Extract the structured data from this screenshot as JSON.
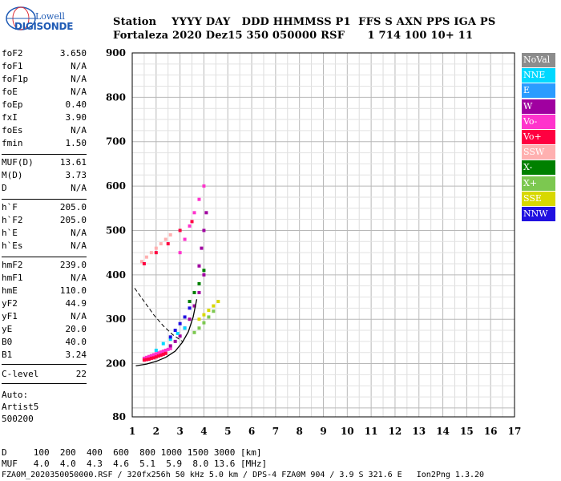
{
  "logo": {
    "line1": "Lowell",
    "line2": "DIGISONDE"
  },
  "header": {
    "labels": "Station    YYYY DAY   DDD HHMMSS P1  FFS S AXN PPS IGA PS",
    "values": "Fortaleza 2020 Dez15 350 050000 RSF      1 714 100 10+ 11"
  },
  "params_group1": [
    {
      "key": "foF2",
      "value": "3.650"
    },
    {
      "key": "foF1",
      "value": "N/A"
    },
    {
      "key": "foF1p",
      "value": "N/A"
    },
    {
      "key": "foE",
      "value": "N/A"
    },
    {
      "key": "foEp",
      "value": "0.40"
    },
    {
      "key": "fxI",
      "value": "3.90"
    },
    {
      "key": "foEs",
      "value": "N/A"
    },
    {
      "key": "fmin",
      "value": "1.50"
    }
  ],
  "params_group2": [
    {
      "key": "MUF(D)",
      "value": "13.61"
    },
    {
      "key": "M(D)",
      "value": "3.73"
    },
    {
      "key": "D",
      "value": "N/A"
    }
  ],
  "params_group3": [
    {
      "key": "h`F",
      "value": "205.0"
    },
    {
      "key": "h`F2",
      "value": "205.0"
    },
    {
      "key": "h`E",
      "value": "N/A"
    },
    {
      "key": "h`Es",
      "value": "N/A"
    }
  ],
  "params_group4": [
    {
      "key": "hmF2",
      "value": "239.0"
    },
    {
      "key": "hmF1",
      "value": "N/A"
    },
    {
      "key": "hmE",
      "value": "110.0"
    },
    {
      "key": "yF2",
      "value": "44.9"
    },
    {
      "key": "yF1",
      "value": "N/A"
    },
    {
      "key": "yE",
      "value": "20.0"
    },
    {
      "key": "B0",
      "value": "40.0"
    },
    {
      "key": "B1",
      "value": "3.24"
    }
  ],
  "params_group5": [
    {
      "key": "C-level",
      "value": "22"
    }
  ],
  "auto_notes": [
    "Auto:",
    "Artist5",
    "500200"
  ],
  "legend": [
    {
      "label": "NoVal",
      "color": "#8c8c8c"
    },
    {
      "label": "NNE",
      "color": "#00d8ff"
    },
    {
      "label": "E",
      "color": "#2b9cff"
    },
    {
      "label": "W",
      "color": "#a000a0"
    },
    {
      "label": "Vo-",
      "color": "#ff33cc"
    },
    {
      "label": "Vo+",
      "color": "#ff0040"
    },
    {
      "label": "SSW",
      "color": "#ffb0b0"
    },
    {
      "label": "X-",
      "color": "#008000"
    },
    {
      "label": "X+",
      "color": "#7cc850"
    },
    {
      "label": "SSE",
      "color": "#d8d800"
    },
    {
      "label": "NNW",
      "color": "#2010e0"
    }
  ],
  "muf_table": {
    "d_row": "D     100  200  400  600  800 1000 1500 3000 [km]",
    "muf_row": "MUF   4.0  4.0  4.3  4.6  5.1  5.9  8.0 13.6 [MHz]"
  },
  "footer": "FZA0M_2020350050000.RSF / 320fx256h 50 kHz 5.0 km / DPS-4 FZA0M 904 / 3.9 S 321.6 E   Ion2Png 1.3.20",
  "chart_data": {
    "type": "scatter",
    "xlim": [
      1,
      17
    ],
    "ylim": [
      80,
      900
    ],
    "x_ticks": [
      1,
      2,
      3,
      4,
      5,
      6,
      7,
      8,
      9,
      10,
      11,
      12,
      13,
      14,
      15,
      16,
      17
    ],
    "y_ticks": [
      80,
      200,
      300,
      400,
      500,
      600,
      700,
      800,
      900
    ],
    "grid": true,
    "legend_position": "right",
    "profile_curve": {
      "x": [
        1.15,
        1.6,
        2.0,
        2.4,
        2.8,
        3.1,
        3.35,
        3.55,
        3.7
      ],
      "y": [
        195,
        199,
        205,
        214,
        228,
        248,
        272,
        305,
        345
      ]
    },
    "extension_curve": {
      "x": [
        1.1,
        1.5,
        1.9,
        2.3,
        2.7,
        3.1
      ],
      "y": [
        370,
        340,
        310,
        285,
        265,
        250
      ]
    },
    "traces": [
      {
        "series": "Vo-",
        "x": [
          1.5,
          1.6,
          1.7,
          1.8,
          1.9,
          2.0,
          2.1,
          2.2,
          2.3,
          2.4,
          2.5,
          2.6
        ],
        "y": [
          212,
          214,
          216,
          218,
          220,
          222,
          224,
          226,
          228,
          230,
          232,
          234
        ]
      },
      {
        "series": "Vo+",
        "x": [
          1.5,
          1.6,
          1.7,
          1.8,
          1.9,
          2.0,
          2.1,
          2.2,
          2.3,
          2.4
        ],
        "y": [
          208,
          209,
          210,
          212,
          213,
          215,
          217,
          219,
          221,
          223
        ]
      },
      {
        "series": "W",
        "x": [
          2.6,
          2.8,
          3.0,
          3.2,
          3.4,
          3.6,
          3.8,
          4.0
        ],
        "y": [
          240,
          250,
          262,
          280,
          300,
          330,
          360,
          400
        ]
      },
      {
        "series": "X+",
        "x": [
          3.6,
          3.8,
          4.0,
          4.2,
          4.4
        ],
        "y": [
          270,
          280,
          292,
          305,
          318
        ]
      },
      {
        "series": "SSE",
        "x": [
          3.8,
          4.0,
          4.2,
          4.4,
          4.6
        ],
        "y": [
          300,
          310,
          320,
          330,
          340
        ]
      },
      {
        "series": "NNE",
        "x": [
          2.0,
          2.3,
          2.6,
          2.9,
          3.2
        ],
        "y": [
          230,
          245,
          255,
          268,
          280
        ]
      },
      {
        "series": "NNW",
        "x": [
          2.6,
          2.8,
          3.0,
          3.2,
          3.4
        ],
        "y": [
          260,
          275,
          290,
          305,
          325
        ]
      },
      {
        "series": "X-",
        "x": [
          3.4,
          3.6,
          3.8,
          4.0
        ],
        "y": [
          340,
          360,
          380,
          410
        ]
      },
      {
        "series": "SSW",
        "x": [
          1.4,
          1.6,
          1.8,
          2.0,
          2.2,
          2.4,
          2.6
        ],
        "y": [
          430,
          440,
          450,
          460,
          470,
          480,
          490
        ]
      },
      {
        "series": "Vo-",
        "x": [
          3.0,
          3.2,
          3.4,
          3.6,
          3.8,
          4.0
        ],
        "y": [
          450,
          480,
          510,
          540,
          570,
          600
        ]
      },
      {
        "series": "W",
        "x": [
          3.8,
          3.9,
          4.0,
          4.1
        ],
        "y": [
          420,
          460,
          500,
          540
        ]
      },
      {
        "series": "Vo+",
        "x": [
          1.5,
          2.0,
          2.5,
          3.0,
          3.5
        ],
        "y": [
          425,
          450,
          470,
          500,
          520
        ]
      }
    ]
  }
}
